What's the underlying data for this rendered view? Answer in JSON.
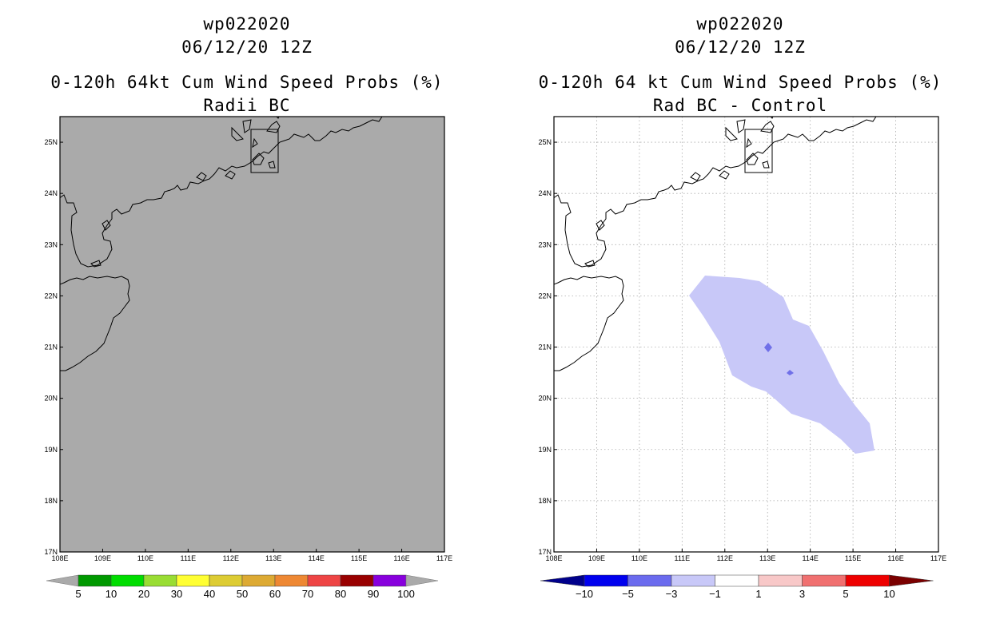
{
  "left_panel": {
    "title_line1": "wp022020",
    "title_line2": "06/12/20 12Z",
    "title_line3": "0-120h 64kt Cum Wind Speed Probs (%)",
    "title_line4": "Radii BC",
    "background_color": "#aaaaaa",
    "colorbar": {
      "colors": [
        "#009900",
        "#00dd00",
        "#99dd33",
        "#ffff33",
        "#ddcc33",
        "#ddaa33",
        "#ee8833",
        "#ee4444",
        "#990000",
        "#8800dd"
      ],
      "end_color": "#aaaaaa",
      "labels": [
        "5",
        "10",
        "20",
        "30",
        "40",
        "50",
        "60",
        "70",
        "80",
        "90",
        "100"
      ]
    }
  },
  "right_panel": {
    "title_line1": "wp022020",
    "title_line2": "06/12/20 12Z",
    "title_line3": "0-120h 64 kt Cum Wind Speed Probs (%)",
    "title_line4": "Rad BC - Control",
    "background_color": "#ffffff",
    "shading_color": "#c8c8f8",
    "spot_color": "#7070e8",
    "colorbar": {
      "low_end_color": "#00008b",
      "high_end_color": "#7b0000",
      "colors": [
        "#0000ee",
        "#6b6bee",
        "#c8c8f8",
        "#ffffff",
        "#f8c8c8",
        "#f07070",
        "#ee0000"
      ],
      "labels": [
        "-10",
        "-5",
        "-3",
        "-1",
        "1",
        "3",
        "5",
        "10"
      ]
    }
  },
  "map": {
    "lon_range": [
      108,
      117
    ],
    "lat_range": [
      17,
      25.5
    ],
    "x_tick_labels": [
      "108E",
      "109E",
      "110E",
      "111E",
      "112E",
      "113E",
      "114E",
      "115E",
      "116E",
      "117E"
    ],
    "y_tick_labels": [
      "17N",
      "18N",
      "19N",
      "20N",
      "21N",
      "22N",
      "23N",
      "24N",
      "25N"
    ]
  }
}
